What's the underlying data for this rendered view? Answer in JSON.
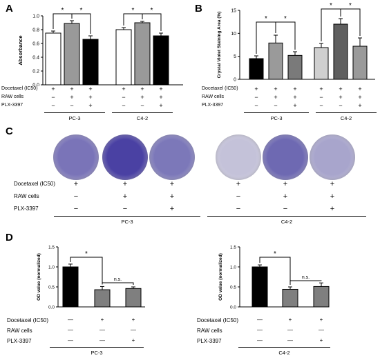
{
  "panels": {
    "A": {
      "letter": "A",
      "ylabel": "Absorbance",
      "yticks": [
        "0.0",
        "0.2",
        "0.4",
        "0.6",
        "0.8",
        "1.0"
      ],
      "ylim": [
        0,
        1.0
      ],
      "groups": [
        {
          "name": "PC-3",
          "bars": [
            {
              "value": 0.75,
              "err": 0.03,
              "fill": "#ffffff"
            },
            {
              "value": 0.89,
              "err": 0.04,
              "fill": "#999999"
            },
            {
              "value": 0.66,
              "err": 0.05,
              "fill": "#000000"
            }
          ]
        },
        {
          "name": "C4-2",
          "bars": [
            {
              "value": 0.8,
              "err": 0.03,
              "fill": "#ffffff"
            },
            {
              "value": 0.9,
              "err": 0.02,
              "fill": "#999999"
            },
            {
              "value": 0.71,
              "err": 0.04,
              "fill": "#000000"
            }
          ]
        }
      ],
      "significance": [
        "*",
        "*",
        "*",
        "*"
      ],
      "conditions": {
        "labels": [
          "Docetaxel (IC50)",
          "RAW cells",
          "PLX-3397"
        ],
        "signs": [
          [
            "+",
            "+",
            "+",
            "+",
            "+",
            "+"
          ],
          [
            "−",
            "+",
            "+",
            "−",
            "+",
            "+"
          ],
          [
            "−",
            "−",
            "+",
            "−",
            "−",
            "+"
          ]
        ]
      }
    },
    "B": {
      "letter": "B",
      "ylabel": "Crystal Violet Staining Area (%)",
      "yticks": [
        "0",
        "5",
        "10",
        "15"
      ],
      "ylim": [
        0,
        15
      ],
      "groups": [
        {
          "name": "PC-3",
          "bars": [
            {
              "value": 4.5,
              "err": 0.6,
              "fill": "#000000"
            },
            {
              "value": 7.9,
              "err": 1.7,
              "fill": "#9a9a9a"
            },
            {
              "value": 5.2,
              "err": 0.8,
              "fill": "#7a7a7a"
            }
          ]
        },
        {
          "name": "C4-2",
          "bars": [
            {
              "value": 6.9,
              "err": 0.9,
              "fill": "#cfcfcf"
            },
            {
              "value": 12.0,
              "err": 1.2,
              "fill": "#5f5f5f"
            },
            {
              "value": 7.2,
              "err": 1.8,
              "fill": "#9a9a9a"
            }
          ]
        }
      ],
      "significance": [
        "*",
        "*",
        "*",
        "*"
      ],
      "conditions": {
        "labels": [
          "Docetaxel (IC50)",
          "RAW cells",
          "PLX-3397"
        ],
        "signs": [
          [
            "+",
            "+",
            "+",
            "+",
            "+",
            "+"
          ],
          [
            "−",
            "+",
            "+",
            "−",
            "+",
            "+"
          ],
          [
            "−",
            "−",
            "+",
            "−",
            "−",
            "+"
          ]
        ]
      }
    },
    "C": {
      "letter": "C",
      "conditions": {
        "labels": [
          "Docetaxel (IC50)",
          "RAW cells",
          "PLX-3397"
        ],
        "signs": [
          [
            "+",
            "+",
            "+",
            "+",
            "+",
            "+"
          ],
          [
            "−",
            "+",
            "+",
            "−",
            "+",
            "+"
          ],
          [
            "−",
            "−",
            "+",
            "−",
            "−",
            "+"
          ]
        ]
      },
      "groups": [
        "PC-3",
        "C4-2"
      ],
      "dish_colors": [
        "#7a74b8",
        "#4a41a3",
        "#7c78b9",
        "#c4c2d9",
        "#6e69b2",
        "#a8a5cc"
      ]
    },
    "D1": {
      "letter": "D",
      "ylabel": "OD value (normalized)",
      "yticks": [
        "0.0",
        "0.5",
        "1.0",
        "1.5"
      ],
      "ylim": [
        0,
        1.5
      ],
      "bars": [
        {
          "value": 1.0,
          "err": 0.07,
          "fill": "#000000"
        },
        {
          "value": 0.43,
          "err": 0.08,
          "fill": "#7f7f7f"
        },
        {
          "value": 0.46,
          "err": 0.04,
          "fill": "#7f7f7f"
        }
      ],
      "annot": [
        "*",
        "n.s."
      ],
      "group": "PC-3",
      "conditions": {
        "labels": [
          "Docetaxel (IC50)",
          "RAW cells",
          "PLX-3397"
        ],
        "signs": [
          [
            "—",
            "+",
            "+"
          ],
          [
            "—",
            "—",
            "—"
          ],
          [
            "—",
            "—",
            "+"
          ]
        ]
      }
    },
    "D2": {
      "ylabel": "OD value (normalized)",
      "yticks": [
        "0.0",
        "0.5",
        "1.0",
        "1.5"
      ],
      "ylim": [
        0,
        1.5
      ],
      "bars": [
        {
          "value": 1.0,
          "err": 0.05,
          "fill": "#000000"
        },
        {
          "value": 0.44,
          "err": 0.06,
          "fill": "#7f7f7f"
        },
        {
          "value": 0.51,
          "err": 0.09,
          "fill": "#7f7f7f"
        }
      ],
      "annot": [
        "*",
        "n.s."
      ],
      "group": "C4-2",
      "conditions": {
        "labels": [
          "Docetaxel (IC50)",
          "RAW cells",
          "PLX-3397"
        ],
        "signs": [
          [
            "—",
            "+",
            "+"
          ],
          [
            "—",
            "—",
            "—"
          ],
          [
            "—",
            "—",
            "+"
          ]
        ]
      }
    }
  },
  "chart_data": [
    {
      "type": "bar",
      "panel": "A",
      "title": "",
      "xlabel": "",
      "ylabel": "Absorbance",
      "ylim": [
        0,
        1.0
      ],
      "categories": [
        "PC-3 1",
        "PC-3 2",
        "PC-3 3",
        "C4-2 1",
        "C4-2 2",
        "C4-2 3"
      ],
      "values": [
        0.75,
        0.89,
        0.66,
        0.8,
        0.9,
        0.71
      ]
    },
    {
      "type": "bar",
      "panel": "B",
      "title": "",
      "xlabel": "",
      "ylabel": "Crystal Violet Staining Area (%)",
      "ylim": [
        0,
        15
      ],
      "categories": [
        "PC-3 1",
        "PC-3 2",
        "PC-3 3",
        "C4-2 1",
        "C4-2 2",
        "C4-2 3"
      ],
      "values": [
        4.5,
        7.9,
        5.2,
        6.9,
        12.0,
        7.2
      ]
    },
    {
      "type": "bar",
      "panel": "D-PC-3",
      "title": "",
      "xlabel": "PC-3",
      "ylabel": "OD value (normalized)",
      "ylim": [
        0,
        1.5
      ],
      "categories": [
        "1",
        "2",
        "3"
      ],
      "values": [
        1.0,
        0.43,
        0.46
      ]
    },
    {
      "type": "bar",
      "panel": "D-C4-2",
      "title": "",
      "xlabel": "C4-2",
      "ylabel": "OD value (normalized)",
      "ylim": [
        0,
        1.5
      ],
      "categories": [
        "1",
        "2",
        "3"
      ],
      "values": [
        1.0,
        0.44,
        0.51
      ]
    }
  ]
}
